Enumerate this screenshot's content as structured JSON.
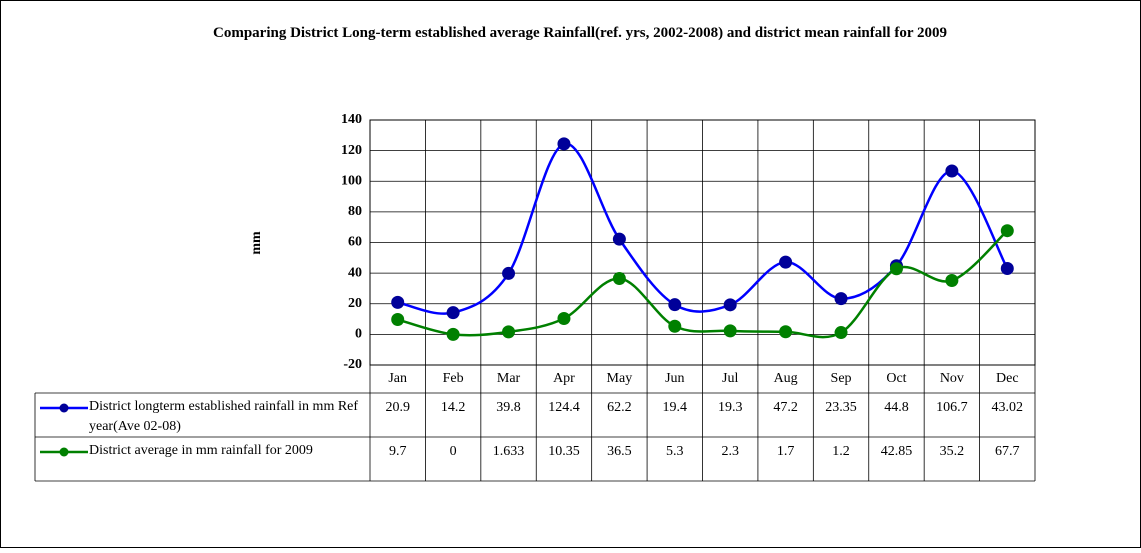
{
  "chart_data": {
    "type": "line",
    "title": "Comparing District Long-term established average Rainfall(ref. yrs, 2002-2008) and district mean rainfall for 2009",
    "y_label": "mm",
    "categories": [
      "Jan",
      "Feb",
      "Mar",
      "Apr",
      "May",
      "Jun",
      "Jul",
      "Aug",
      "Sep",
      "Oct",
      "Nov",
      "Dec"
    ],
    "series": [
      {
        "name": "District longterm established rainfall in mm Ref year(Ave 02-08)",
        "color": "#0000ff",
        "marker_color": "#000099",
        "values": [
          20.9,
          14.2,
          39.8,
          124.4,
          62.2,
          19.4,
          19.3,
          47.2,
          23.35,
          44.8,
          106.7,
          43.02
        ]
      },
      {
        "name": "District average in mm rainfall for 2009",
        "color": "#008000",
        "marker_color": "#008000",
        "values": [
          9.7,
          0,
          1.633,
          10.35,
          36.5,
          5.3,
          2.3,
          1.7,
          1.2,
          42.85,
          35.2,
          67.7
        ]
      }
    ],
    "ylim": [
      -20,
      140
    ],
    "yticks": [
      -20,
      0,
      20,
      40,
      60,
      80,
      100,
      120,
      140
    ],
    "grid": true,
    "smooth": true
  }
}
